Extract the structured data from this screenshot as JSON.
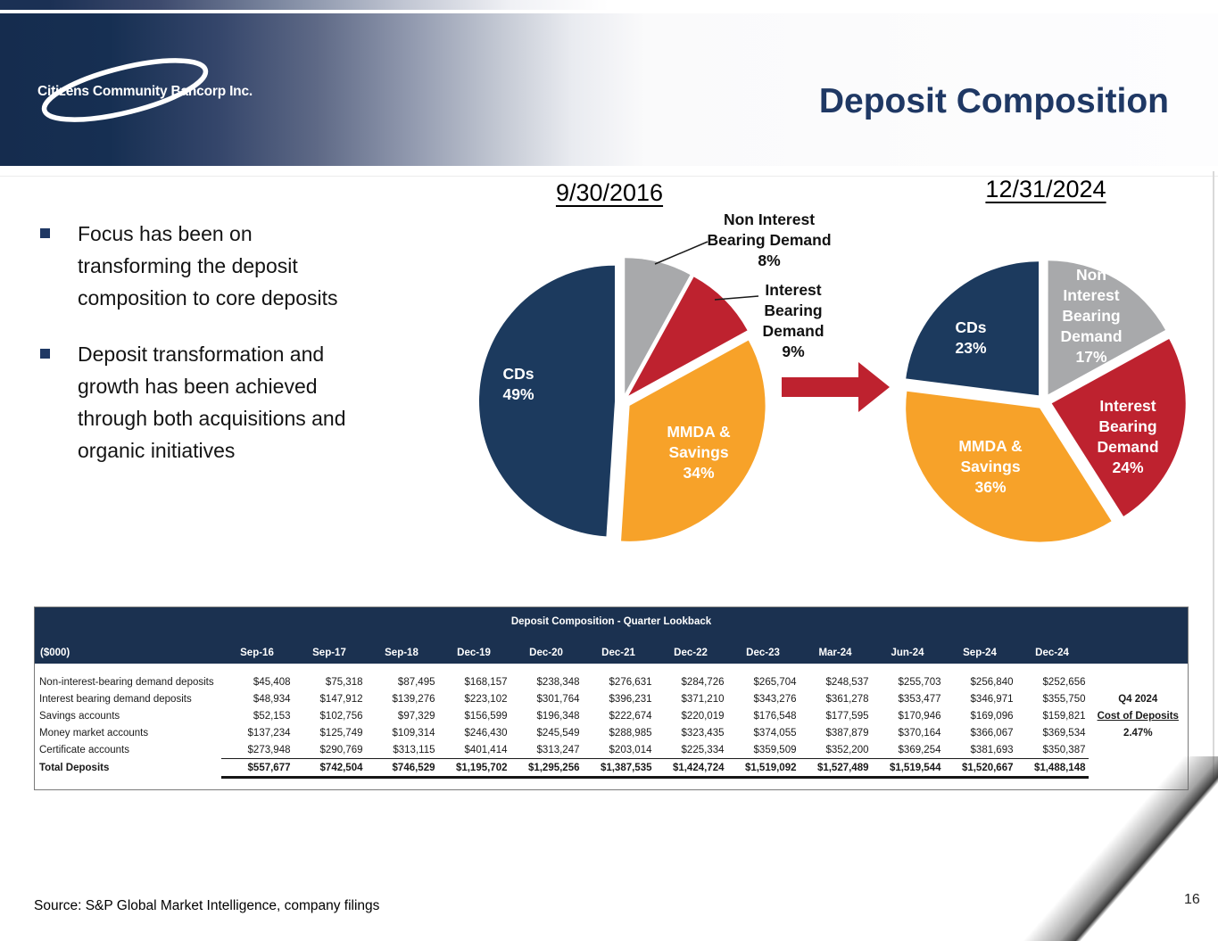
{
  "slide": {
    "logo_text": "Citizens Community Bancorp Inc.",
    "title": "Deposit Composition",
    "source": "Source: S&P Global Market Intelligence, company filings",
    "page_number": "16"
  },
  "colors": {
    "accent_navy": "#1F3864",
    "pie_navy": "#1C3A5E",
    "pie_orange": "#F7A229",
    "pie_red": "#BE222F",
    "pie_gray": "#A8A9AB",
    "arrow": "#BE222F",
    "table_header_navy": "#1B3150"
  },
  "bullets": [
    "Focus has been on transforming the deposit composition to core deposits",
    "Deposit transformation and growth has been achieved through both acquisitions and organic initiatives"
  ],
  "chart_data": [
    {
      "type": "pie",
      "date_label": "9/30/2016",
      "start_angle": 0,
      "clockwise": true,
      "legend_position": "labels-on-chart",
      "slices": [
        {
          "name": "Non Interest Bearing Demand",
          "pct": 8,
          "pct_label": "8%",
          "color": "#A8A9AB",
          "label_placement": "outside"
        },
        {
          "name": "Interest Bearing Demand",
          "pct": 9,
          "pct_label": "9%",
          "color": "#BE222F",
          "label_placement": "outside"
        },
        {
          "name": "MMDA & Savings",
          "pct": 34,
          "pct_label": "34%",
          "color": "#F7A229",
          "label_placement": "inside"
        },
        {
          "name": "CDs",
          "pct": 49,
          "pct_label": "49%",
          "color": "#1C3A5E",
          "label_placement": "inside"
        }
      ]
    },
    {
      "type": "pie",
      "date_label": "12/31/2024",
      "start_angle": 0,
      "clockwise": true,
      "legend_position": "labels-on-chart",
      "slices": [
        {
          "name": "Non Interest Bearing Demand",
          "pct": 17,
          "pct_label": "17%",
          "color": "#A8A9AB",
          "label_placement": "inside"
        },
        {
          "name": "Interest Bearing Demand",
          "pct": 24,
          "pct_label": "24%",
          "color": "#BE222F",
          "label_placement": "inside"
        },
        {
          "name": "MMDA & Savings",
          "pct": 36,
          "pct_label": "36%",
          "color": "#F7A229",
          "label_placement": "inside"
        },
        {
          "name": "CDs",
          "pct": 23,
          "pct_label": "23%",
          "color": "#1C3A5E",
          "label_placement": "inside"
        }
      ]
    }
  ],
  "table": {
    "title": "Deposit Composition - Quarter Lookback",
    "unit_label": "($000)",
    "columns": [
      "Sep-16",
      "Sep-17",
      "Sep-18",
      "Dec-19",
      "Dec-20",
      "Dec-21",
      "Dec-22",
      "Dec-23",
      "Mar-24",
      "Jun-24",
      "Sep-24",
      "Dec-24"
    ],
    "rows": [
      {
        "label": "Non-interest-bearing demand deposits",
        "values": [
          "$45,408",
          "$75,318",
          "$87,495",
          "$168,157",
          "$238,348",
          "$276,631",
          "$284,726",
          "$265,704",
          "$248,537",
          "$255,703",
          "$256,840",
          "$252,656"
        ],
        "note": ""
      },
      {
        "label": "Interest bearing demand deposits",
        "values": [
          "$48,934",
          "$147,912",
          "$139,276",
          "$223,102",
          "$301,764",
          "$396,231",
          "$371,210",
          "$343,276",
          "$361,278",
          "$353,477",
          "$346,971",
          "$355,750"
        ],
        "note": "Q4 2024"
      },
      {
        "label": "Savings accounts",
        "values": [
          "$52,153",
          "$102,756",
          "$97,329",
          "$156,599",
          "$196,348",
          "$222,674",
          "$220,019",
          "$176,548",
          "$177,595",
          "$170,946",
          "$169,096",
          "$159,821"
        ],
        "note": "Cost of Deposits",
        "note_underline": true
      },
      {
        "label": "Money market accounts",
        "values": [
          "$137,234",
          "$125,749",
          "$109,314",
          "$246,430",
          "$245,549",
          "$288,985",
          "$323,435",
          "$374,055",
          "$387,879",
          "$370,164",
          "$366,067",
          "$369,534"
        ],
        "note": "2.47%"
      },
      {
        "label": "Certificate accounts",
        "values": [
          "$273,948",
          "$290,769",
          "$313,115",
          "$401,414",
          "$313,247",
          "$203,014",
          "$225,334",
          "$359,509",
          "$352,200",
          "$369,254",
          "$381,693",
          "$350,387"
        ],
        "note": ""
      },
      {
        "label": "Total Deposits",
        "values": [
          "$557,677",
          "$742,504",
          "$746,529",
          "$1,195,702",
          "$1,295,256",
          "$1,387,535",
          "$1,424,724",
          "$1,519,092",
          "$1,527,489",
          "$1,519,544",
          "$1,520,667",
          "$1,488,148"
        ],
        "note": "",
        "total": true
      }
    ]
  }
}
